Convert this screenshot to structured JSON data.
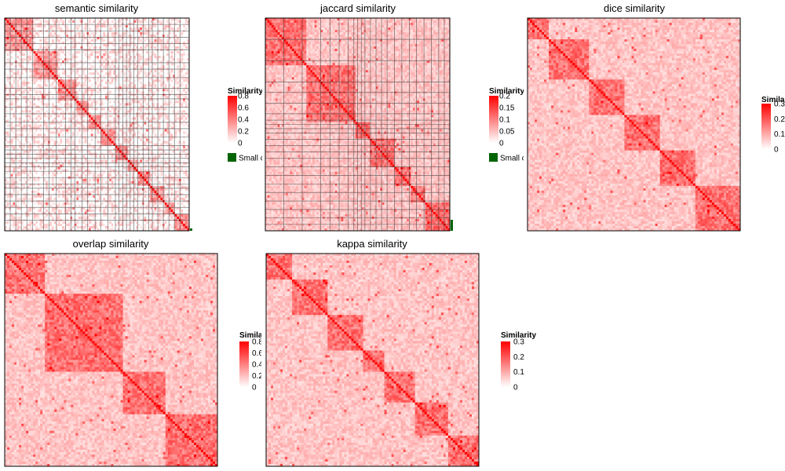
{
  "chart_data": [
    {
      "type": "heatmap",
      "title": "semantic similarity",
      "legend": {
        "title": "Similarity",
        "ticks": [
          "0",
          "0.2",
          "0.4",
          "0.6",
          "0.8"
        ],
        "max": 0.8,
        "extra_label": "Small cluster",
        "extra_color": "#006400"
      },
      "colors": {
        "low": "#ffffff",
        "high": "#ff0000"
      },
      "grid": true
    },
    {
      "type": "heatmap",
      "title": "jaccard similarity",
      "legend": {
        "title": "Similarity",
        "ticks": [
          "0",
          "0.05",
          "0.1",
          "0.15",
          "0.2"
        ],
        "max": 0.2,
        "extra_label": "Small cluster",
        "extra_color": "#006400"
      },
      "colors": {
        "low": "#ffffff",
        "high": "#ff0000"
      },
      "grid": true
    },
    {
      "type": "heatmap",
      "title": "dice similarity",
      "legend": {
        "title": "Similarity",
        "ticks": [
          "0",
          "0.1",
          "0.2",
          "0.3"
        ],
        "max": 0.3
      },
      "colors": {
        "low": "#ffffff",
        "high": "#ff0000"
      },
      "grid": false
    },
    {
      "type": "heatmap",
      "title": "overlap similarity",
      "legend": {
        "title": "Similarity",
        "ticks": [
          "0",
          "0.2",
          "0.4",
          "0.6",
          "0.8"
        ],
        "max": 0.8
      },
      "colors": {
        "low": "#ffffff",
        "high": "#ff0000"
      },
      "grid": false
    },
    {
      "type": "heatmap",
      "title": "kappa similarity",
      "legend": {
        "title": "Similarity",
        "ticks": [
          "0",
          "0.1",
          "0.2",
          "0.3"
        ],
        "max": 0.3
      },
      "colors": {
        "low": "#ffffff",
        "high": "#ff0000"
      },
      "grid": false
    }
  ]
}
